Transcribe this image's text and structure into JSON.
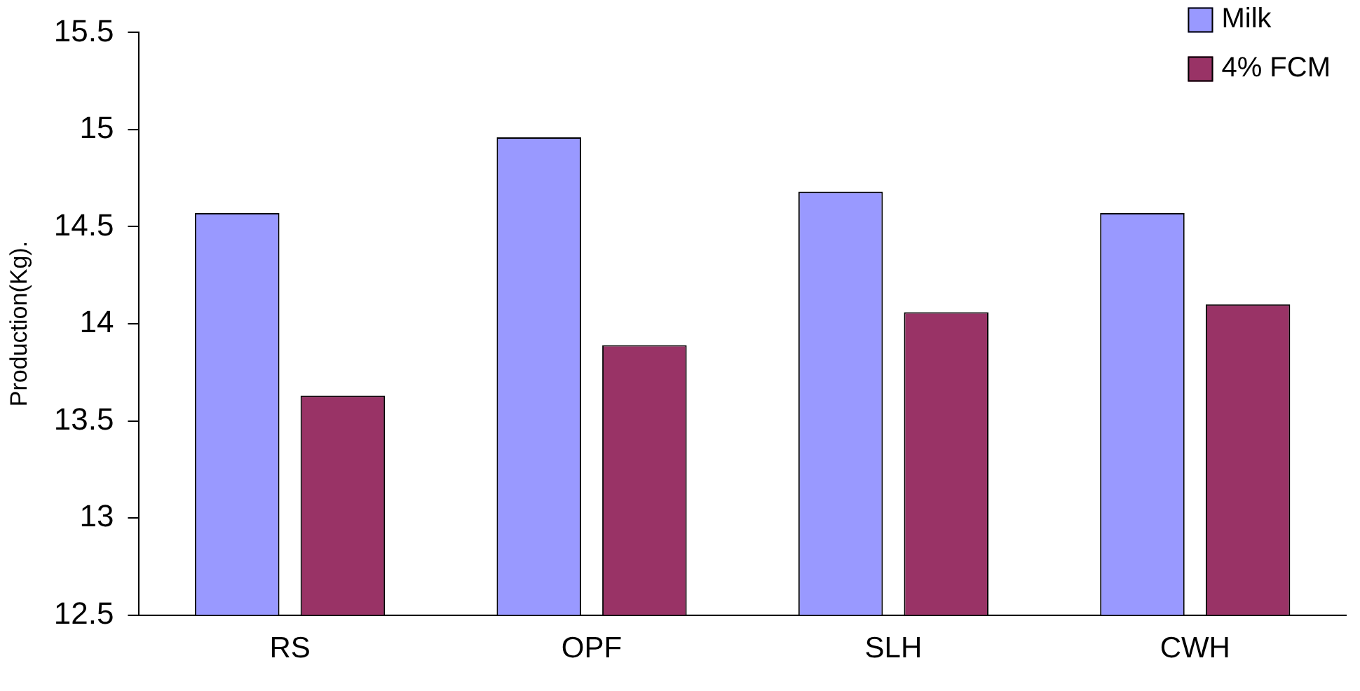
{
  "chart_data": {
    "type": "bar",
    "ylabel": "Production(Kg).",
    "categories": [
      "RS",
      "OPF",
      "SLH",
      "CWH"
    ],
    "series": [
      {
        "name": "Milk",
        "color": "#9999ff",
        "values": [
          14.57,
          14.96,
          14.68,
          14.57
        ]
      },
      {
        "name": "4% FCM",
        "color": "#993366",
        "values": [
          13.63,
          13.89,
          14.06,
          14.1
        ]
      }
    ],
    "ylim": [
      12.5,
      15.5
    ],
    "yticks": [
      12.5,
      13,
      13.5,
      14,
      14.5,
      15,
      15.5
    ],
    "grid": false,
    "legend": "top right"
  }
}
